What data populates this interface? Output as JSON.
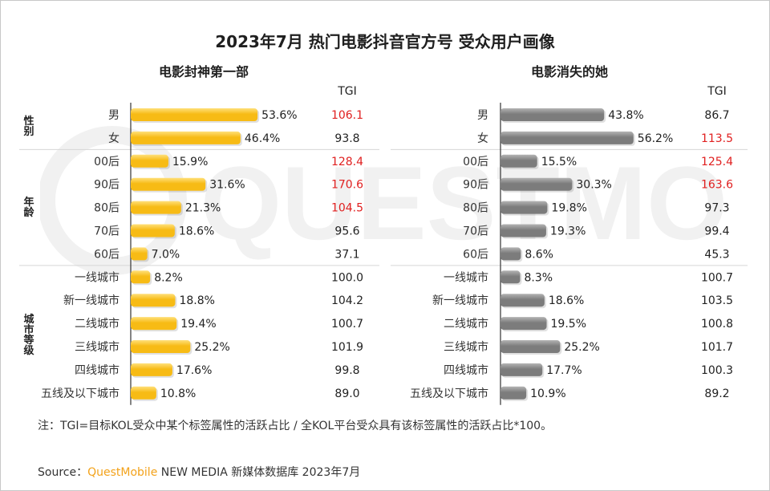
{
  "title": "2023年7月 热门电影抖音官方号 受众用户画像",
  "tgi_header": "TGI",
  "groups": [
    {
      "label": "性\n别",
      "rows": 2
    },
    {
      "label": "年\n龄",
      "rows": 5
    },
    {
      "label": "城\n市\n等\n级",
      "rows": 6
    }
  ],
  "categories": [
    "男",
    "女",
    "00后",
    "90后",
    "80后",
    "70后",
    "60后",
    "一线城市",
    "新一线城市",
    "二线城市",
    "三线城市",
    "四线城市",
    "五线及以下城市"
  ],
  "chart_data": [
    {
      "type": "bar",
      "title": "电影封神第一部",
      "categories": [
        "男",
        "女",
        "00后",
        "90后",
        "80后",
        "70后",
        "60后",
        "一线城市",
        "新一线城市",
        "二线城市",
        "三线城市",
        "四线城市",
        "五线及以下城市"
      ],
      "values": [
        53.6,
        46.4,
        15.9,
        31.6,
        21.3,
        18.6,
        7.0,
        8.2,
        18.8,
        19.4,
        25.2,
        17.6,
        10.8
      ],
      "value_labels": [
        "53.6%",
        "46.4%",
        "15.9%",
        "31.6%",
        "21.3%",
        "18.6%",
        "7.0%",
        "8.2%",
        "18.8%",
        "19.4%",
        "25.2%",
        "17.6%",
        "10.8%"
      ],
      "tgi": [
        "106.1",
        "93.8",
        "128.4",
        "170.6",
        "104.5",
        "95.6",
        "37.1",
        "100.0",
        "104.2",
        "100.7",
        "101.9",
        "99.8",
        "89.0"
      ],
      "tgi_highlight": [
        true,
        false,
        true,
        true,
        true,
        false,
        false,
        false,
        false,
        false,
        false,
        false,
        false
      ],
      "bar_color": "#f7bb15",
      "bar_color_light": "#ffe07a",
      "highlight_color": "#e02020"
    },
    {
      "type": "bar",
      "title": "电影消失的她",
      "categories": [
        "男",
        "女",
        "00后",
        "90后",
        "80后",
        "70后",
        "60后",
        "一线城市",
        "新一线城市",
        "二线城市",
        "三线城市",
        "四线城市",
        "五线及以下城市"
      ],
      "values": [
        43.8,
        56.2,
        15.5,
        30.3,
        19.8,
        19.3,
        8.6,
        8.3,
        18.6,
        19.5,
        25.2,
        17.7,
        10.9
      ],
      "value_labels": [
        "43.8%",
        "56.2%",
        "15.5%",
        "30.3%",
        "19.8%",
        "19.3%",
        "8.6%",
        "8.3%",
        "18.6%",
        "19.5%",
        "25.2%",
        "17.7%",
        "10.9%"
      ],
      "tgi": [
        "86.7",
        "113.5",
        "125.4",
        "163.6",
        "97.3",
        "99.4",
        "45.3",
        "100.7",
        "103.5",
        "100.8",
        "101.7",
        "100.3",
        "89.2"
      ],
      "tgi_highlight": [
        false,
        true,
        true,
        true,
        false,
        false,
        false,
        false,
        false,
        false,
        false,
        false,
        false
      ],
      "bar_color": "#7c7c7c",
      "bar_color_light": "#b4b4b4",
      "highlight_color": "#e02020"
    }
  ],
  "watermark": "QUESTMOBILE",
  "note": "注：TGI=目标KOL受众中某个标签属性的活跃占比 / 全KOL平台受众具有该标签属性的活跃占比*100。",
  "source": {
    "prefix": "Source：",
    "brand": "QuestMobile",
    "suffix": " NEW MEDIA 新媒体数据库 2023年7月"
  }
}
